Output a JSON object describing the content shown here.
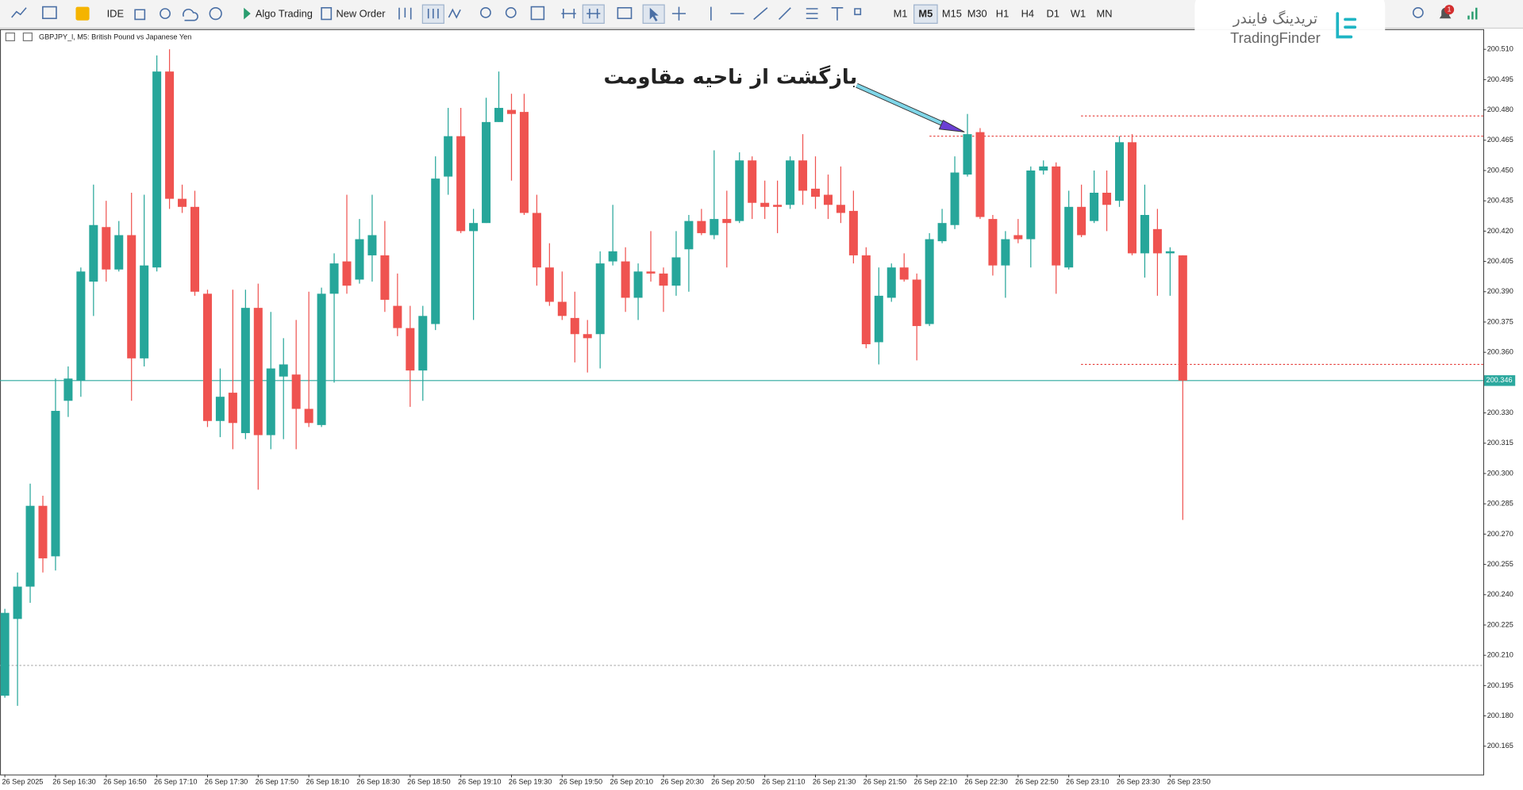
{
  "toolbar": {
    "ide": "IDE",
    "algo_trading": "Algo Trading",
    "new_order": "New Order",
    "timeframes": [
      "M1",
      "M5",
      "M15",
      "M30",
      "H1",
      "H4",
      "D1",
      "W1",
      "MN"
    ],
    "active_timeframe": 1,
    "notifications": "1"
  },
  "logo": {
    "name_fa": "تریدینگ فایندر",
    "name_en": "TradingFinder"
  },
  "chart_data": {
    "type": "candlestick",
    "title": "GBPJPY_l, M5: British Pound vs Japanese Yen",
    "annotation": "بازگشت از ناحیه مقاومت",
    "up_color": "#26a69a",
    "down_color": "#ef5350",
    "categories": [
      "26 Sep 2025",
      null,
      null,
      null,
      "26 Sep 16:30",
      null,
      null,
      null,
      "26 Sep 16:50",
      null,
      null,
      null,
      "26 Sep 17:10",
      null,
      null,
      null,
      "26 Sep 17:30",
      null,
      null,
      null,
      "26 Sep 17:50",
      null,
      null,
      null,
      "26 Sep 18:10",
      null,
      null,
      null,
      "26 Sep 18:30",
      null,
      null,
      null,
      "26 Sep 18:50",
      null,
      null,
      null,
      "26 Sep 19:10",
      null,
      null,
      null,
      "26 Sep 19:30",
      null,
      null,
      null,
      "26 Sep 19:50",
      null,
      null,
      null,
      "26 Sep 20:10",
      null,
      null,
      null,
      "26 Sep 20:30",
      null,
      null,
      null,
      "26 Sep 20:50",
      null,
      null,
      null,
      "26 Sep 21:10",
      null,
      null,
      null,
      "26 Sep 21:30",
      null,
      null,
      null,
      "26 Sep 21:50",
      null,
      null,
      null,
      "26 Sep 22:10",
      null,
      null,
      null,
      "26 Sep 22:30",
      null,
      null,
      null,
      "26 Sep 22:50",
      null,
      null,
      null,
      "26 Sep 23:10",
      null,
      null,
      null,
      "26 Sep 23:30",
      null,
      null,
      null,
      "26 Sep 23:50",
      null
    ],
    "open": [
      200.19,
      200.228,
      200.244,
      200.284,
      200.259,
      200.336,
      200.346,
      200.395,
      200.422,
      200.401,
      200.418,
      200.357,
      200.402,
      200.499,
      200.436,
      200.432,
      200.389,
      200.326,
      200.34,
      200.32,
      200.382,
      200.319,
      200.348,
      200.349,
      200.332,
      200.324,
      200.389,
      200.405,
      200.396,
      200.408,
      200.408,
      200.383,
      200.372,
      200.351,
      200.374,
      200.447,
      200.467,
      200.42,
      200.424,
      200.474,
      200.48,
      200.479,
      200.429,
      200.402,
      200.385,
      200.377,
      200.369,
      200.369,
      200.405,
      200.405,
      200.387,
      200.4,
      200.399,
      200.393,
      200.411,
      200.425,
      200.418,
      200.426,
      200.425,
      200.455,
      200.434,
      200.433,
      200.433,
      200.455,
      200.441,
      200.438,
      200.433,
      200.43,
      200.408,
      200.365,
      200.387,
      200.402,
      200.396,
      200.374,
      200.415,
      200.423,
      200.448,
      200.469,
      200.426,
      200.403,
      200.418,
      200.416,
      200.45,
      200.452,
      200.402,
      200.432,
      200.425,
      200.439,
      200.435,
      200.464,
      200.409,
      200.421,
      200.409,
      200.408
    ],
    "high": [
      200.233,
      200.251,
      200.295,
      200.289,
      200.347,
      200.353,
      200.402,
      200.443,
      200.435,
      200.425,
      200.439,
      200.438,
      200.507,
      200.51,
      200.443,
      200.44,
      200.391,
      200.352,
      200.391,
      200.391,
      200.394,
      200.38,
      200.367,
      200.376,
      200.39,
      200.392,
      200.409,
      200.438,
      200.426,
      200.438,
      200.425,
      200.399,
      200.383,
      200.383,
      200.457,
      200.481,
      200.481,
      200.431,
      200.486,
      200.499,
      200.488,
      200.488,
      200.438,
      200.414,
      200.4,
      200.39,
      200.376,
      200.41,
      200.433,
      200.412,
      200.404,
      200.42,
      200.402,
      200.42,
      200.428,
      200.431,
      200.46,
      200.44,
      200.459,
      200.457,
      200.445,
      200.445,
      200.457,
      200.468,
      200.457,
      200.448,
      200.452,
      200.44,
      200.412,
      200.402,
      200.404,
      200.409,
      200.399,
      200.419,
      200.431,
      200.457,
      200.478,
      200.471,
      200.428,
      200.42,
      200.426,
      200.452,
      200.455,
      200.454,
      200.44,
      200.443,
      200.45,
      200.45,
      200.467,
      200.468,
      200.443,
      200.431,
      200.412,
      200.408
    ],
    "low": [
      200.189,
      200.185,
      200.236,
      200.251,
      200.252,
      200.328,
      200.338,
      200.378,
      200.395,
      200.4,
      200.336,
      200.353,
      200.4,
      200.431,
      200.429,
      200.388,
      200.323,
      200.318,
      200.312,
      200.317,
      200.292,
      200.312,
      200.317,
      200.312,
      200.323,
      200.323,
      200.345,
      200.389,
      200.394,
      200.395,
      200.38,
      200.368,
      200.333,
      200.336,
      200.371,
      200.438,
      200.419,
      200.376,
      200.424,
      200.474,
      200.445,
      200.428,
      200.393,
      200.383,
      200.376,
      200.355,
      200.35,
      200.352,
      200.403,
      200.38,
      200.376,
      200.395,
      200.38,
      200.388,
      200.39,
      200.418,
      200.416,
      200.402,
      200.424,
      200.426,
      200.426,
      200.419,
      200.431,
      200.433,
      200.431,
      200.426,
      200.424,
      200.404,
      200.362,
      200.354,
      200.385,
      200.395,
      200.356,
      200.373,
      200.414,
      200.421,
      200.447,
      200.426,
      200.398,
      200.387,
      200.414,
      200.402,
      200.448,
      200.389,
      200.401,
      200.417,
      200.424,
      200.42,
      200.432,
      200.408,
      200.397,
      200.388,
      200.388,
      200.277
    ],
    "close": [
      200.231,
      200.244,
      200.284,
      200.258,
      200.331,
      200.347,
      200.4,
      200.423,
      200.401,
      200.418,
      200.357,
      200.403,
      200.499,
      200.436,
      200.432,
      200.39,
      200.326,
      200.338,
      200.325,
      200.382,
      200.319,
      200.352,
      200.354,
      200.332,
      200.325,
      200.389,
      200.404,
      200.393,
      200.416,
      200.418,
      200.386,
      200.372,
      200.351,
      200.378,
      200.446,
      200.467,
      200.42,
      200.424,
      200.474,
      200.481,
      200.478,
      200.429,
      200.402,
      200.385,
      200.378,
      200.369,
      200.367,
      200.404,
      200.41,
      200.387,
      200.4,
      200.399,
      200.393,
      200.407,
      200.425,
      200.419,
      200.426,
      200.424,
      200.455,
      200.434,
      200.432,
      200.432,
      200.455,
      200.44,
      200.437,
      200.433,
      200.429,
      200.408,
      200.364,
      200.388,
      200.402,
      200.396,
      200.373,
      200.416,
      200.424,
      200.449,
      200.468,
      200.427,
      200.403,
      200.416,
      200.416,
      200.45,
      200.452,
      200.403,
      200.432,
      200.418,
      200.439,
      200.433,
      200.464,
      200.409,
      200.428,
      200.409,
      200.41,
      200.346
    ],
    "current_price": 200.346,
    "current_price_color": "#2ba89e",
    "levels": [
      {
        "value": 200.477,
        "color": "#e53935",
        "style": "dotted"
      },
      {
        "value": 200.467,
        "color": "#e53935",
        "style": "dotted"
      },
      {
        "value": 200.354,
        "color": "#e53935",
        "style": "dotted"
      },
      {
        "value": 200.205,
        "color": "#aaaaaa",
        "style": "dotted"
      }
    ],
    "ylim": [
      200.151,
      200.52
    ],
    "yticks": [
      {
        "value": 200.51,
        "label": "200.510"
      },
      200.495,
      {
        "value": 200.48,
        "label": "200.480"
      },
      200.465,
      {
        "value": 200.45,
        "label": "200.450"
      },
      200.435,
      {
        "value": 200.42,
        "label": "200.420"
      },
      200.405,
      {
        "value": 200.39,
        "label": "200.390"
      },
      200.375,
      {
        "value": 200.36,
        "label": "200.360"
      },
      {
        "value": 200.33,
        "label": "200.330"
      },
      200.315,
      {
        "value": 200.3,
        "label": "200.300"
      },
      200.285,
      {
        "value": 200.27,
        "label": "200.270"
      },
      200.255,
      {
        "value": 200.24,
        "label": "200.240"
      },
      200.225,
      {
        "value": 200.21,
        "label": "200.210"
      },
      200.195,
      {
        "value": 200.18,
        "label": "200.180"
      },
      200.165
    ],
    "grid": false
  }
}
